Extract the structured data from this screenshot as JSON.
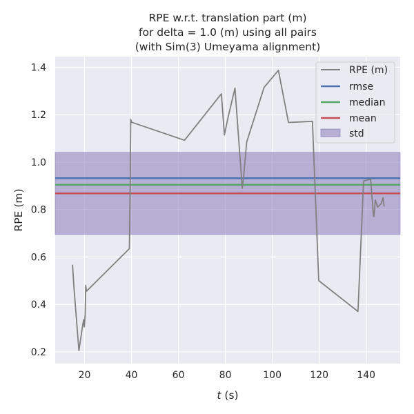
{
  "chart_data": {
    "type": "line",
    "title": {
      "line1": "RPE w.r.t. translation part (m)",
      "line2": "for delta = 1.0 (m) using all pairs",
      "line3": "(with Sim(3) Umeyama alignment)"
    },
    "xlabel": {
      "italic": "t",
      "rest": " (s)"
    },
    "ylabel": "RPE (m)",
    "xlim": [
      7.5,
      154.5
    ],
    "ylim": [
      0.15,
      1.445
    ],
    "xticks": [
      20,
      40,
      60,
      80,
      100,
      120,
      140
    ],
    "yticks": [
      0.2,
      0.4,
      0.6,
      0.8,
      1.0,
      1.2,
      1.4
    ],
    "grid": true,
    "legend_position": "top-right",
    "series": [
      {
        "name": "RPE (m)",
        "color": "#808080",
        "x": [
          14.9,
          15.5,
          17.6,
          19.1,
          19.6,
          19.9,
          20.3,
          20.5,
          20.8,
          39.1,
          39.5,
          39.7,
          40.1,
          62.6,
          78.3,
          79.6,
          81.3,
          84.1,
          87.2,
          87.7,
          89.1,
          96.5,
          102.6,
          106.9,
          117.1,
          119.8,
          136.5,
          138.9,
          141.9,
          143.1,
          143.3,
          143.9,
          144.9,
          146.4,
          147.2,
          147.6
        ],
        "y": [
          0.565,
          0.47,
          0.205,
          0.305,
          0.335,
          0.305,
          0.36,
          0.48,
          0.455,
          0.635,
          0.93,
          1.18,
          1.168,
          1.092,
          1.288,
          1.115,
          1.195,
          1.312,
          0.89,
          0.93,
          1.085,
          1.315,
          1.387,
          1.167,
          1.172,
          0.5,
          0.37,
          0.92,
          0.928,
          0.775,
          0.77,
          0.84,
          0.81,
          0.825,
          0.85,
          0.815
        ]
      }
    ],
    "stats": {
      "rmse": {
        "name": "rmse",
        "value": 0.932,
        "color": "#4c72b0"
      },
      "median": {
        "name": "median",
        "value": 0.904,
        "color": "#55a868"
      },
      "mean": {
        "name": "mean",
        "value": 0.868,
        "color": "#c44e52"
      },
      "std": {
        "name": "std",
        "low": 0.695,
        "high": 1.041,
        "color": "#8172b3"
      }
    }
  }
}
